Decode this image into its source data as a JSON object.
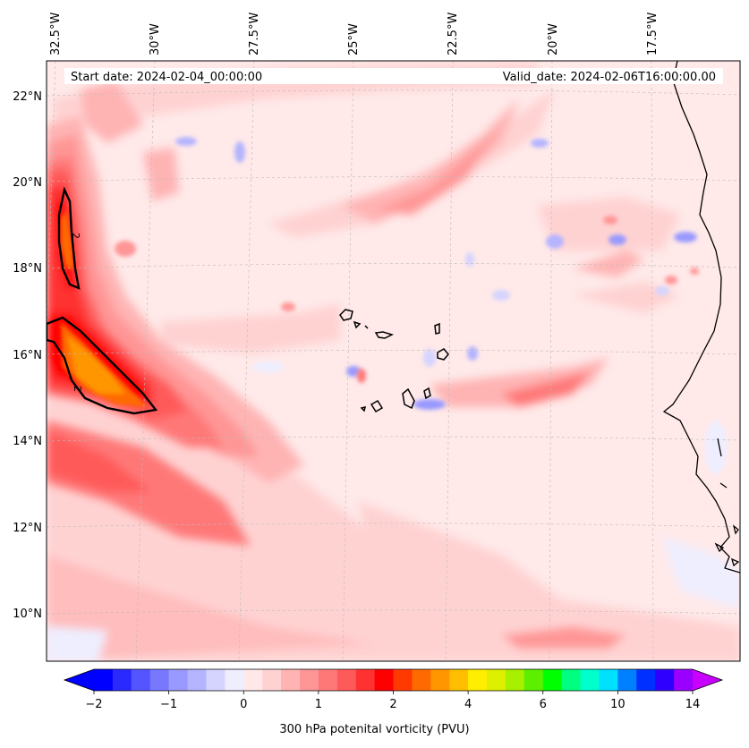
{
  "header": {
    "start_date": "Start date: 2024-02-04_00:00:00",
    "valid_date": "Valid_date: 2024-02-06T16:00:00.00"
  },
  "longitude_labels": [
    "32.5°W",
    "30°W",
    "27.5°W",
    "25°W",
    "22.5°W",
    "20°W",
    "17.5°W"
  ],
  "latitude_labels": [
    "22°N",
    "20°N",
    "18°N",
    "16°N",
    "14°N",
    "12°N",
    "10°N"
  ],
  "colorbar": {
    "label": "300 hPa potenital vorticity (PVU)",
    "tick_labels": [
      "−2",
      "−1",
      "0",
      "1",
      "2",
      "4",
      "6",
      "10",
      "14"
    ],
    "colors": [
      "#0000ff",
      "#2a2aff",
      "#5555ff",
      "#7878ff",
      "#9999ff",
      "#b4b4ff",
      "#d4d4ff",
      "#eeeeff",
      "#ffe8e8",
      "#ffd2d2",
      "#ffb4b4",
      "#ff9696",
      "#ff7878",
      "#ff5a5a",
      "#ff3232",
      "#ff0000",
      "#ff3a00",
      "#ff6a00",
      "#ff9600",
      "#ffbf00",
      "#ffee00",
      "#dcf000",
      "#a6f000",
      "#5cf000",
      "#00ff00",
      "#00ff80",
      "#00ffcc",
      "#00e0ff",
      "#0080ff",
      "#0030ff",
      "#3000ff",
      "#9a00ff"
    ],
    "under_color": "#0000ff",
    "over_color": "#c800ff"
  },
  "contour_labels": [
    "2",
    "2"
  ],
  "colors": {
    "ocean_background": "#ffe9e9",
    "coastline": "#000000",
    "gridline": "#bbbbbb"
  }
}
